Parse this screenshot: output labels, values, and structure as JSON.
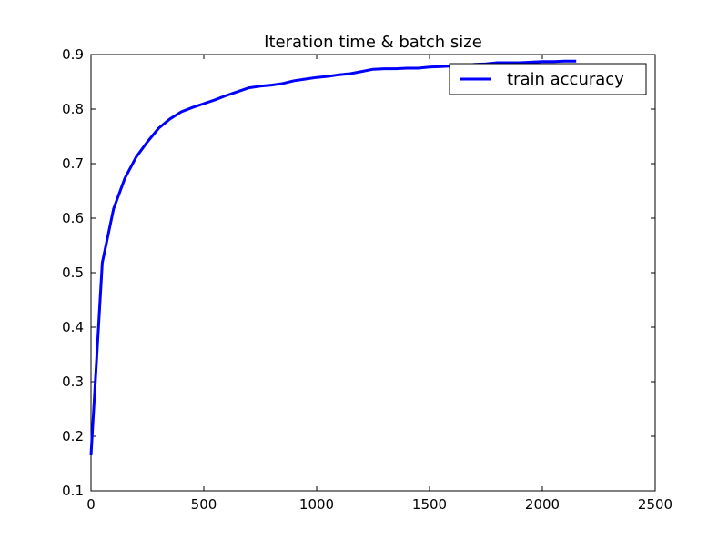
{
  "chart_data": {
    "type": "line",
    "title": "Iteration time & batch size",
    "xlabel": "",
    "ylabel": "",
    "xlim": [
      0,
      2500
    ],
    "ylim": [
      0.1,
      0.9
    ],
    "x_ticks": [
      0,
      500,
      1000,
      1500,
      2000,
      2500
    ],
    "y_ticks": [
      0.1,
      0.2,
      0.3,
      0.4,
      0.5,
      0.6,
      0.7,
      0.8,
      0.9
    ],
    "x_tick_labels": [
      "0",
      "500",
      "1000",
      "1500",
      "2000",
      "2500"
    ],
    "y_tick_labels": [
      "0.1",
      "0.2",
      "0.3",
      "0.4",
      "0.5",
      "0.6",
      "0.7",
      "0.8",
      "0.9"
    ],
    "grid": false,
    "legend_position": "top-right",
    "series": [
      {
        "name": "train accuracy",
        "color": "#0000ff",
        "x": [
          0,
          50,
          100,
          150,
          200,
          250,
          300,
          350,
          400,
          450,
          500,
          550,
          600,
          650,
          700,
          750,
          800,
          850,
          900,
          950,
          1000,
          1050,
          1100,
          1150,
          1200,
          1250,
          1300,
          1350,
          1400,
          1450,
          1500,
          1550,
          1600,
          1650,
          1700,
          1750,
          1800,
          1850,
          1900,
          1950,
          2000,
          2050,
          2100,
          2150
        ],
        "y": [
          0.165,
          0.518,
          0.617,
          0.673,
          0.712,
          0.74,
          0.765,
          0.782,
          0.795,
          0.803,
          0.81,
          0.817,
          0.825,
          0.832,
          0.839,
          0.842,
          0.844,
          0.847,
          0.852,
          0.855,
          0.858,
          0.86,
          0.863,
          0.865,
          0.869,
          0.873,
          0.874,
          0.874,
          0.875,
          0.875,
          0.877,
          0.878,
          0.879,
          0.88,
          0.882,
          0.883,
          0.885,
          0.885,
          0.885,
          0.886,
          0.887,
          0.887,
          0.888,
          0.888
        ]
      }
    ]
  }
}
